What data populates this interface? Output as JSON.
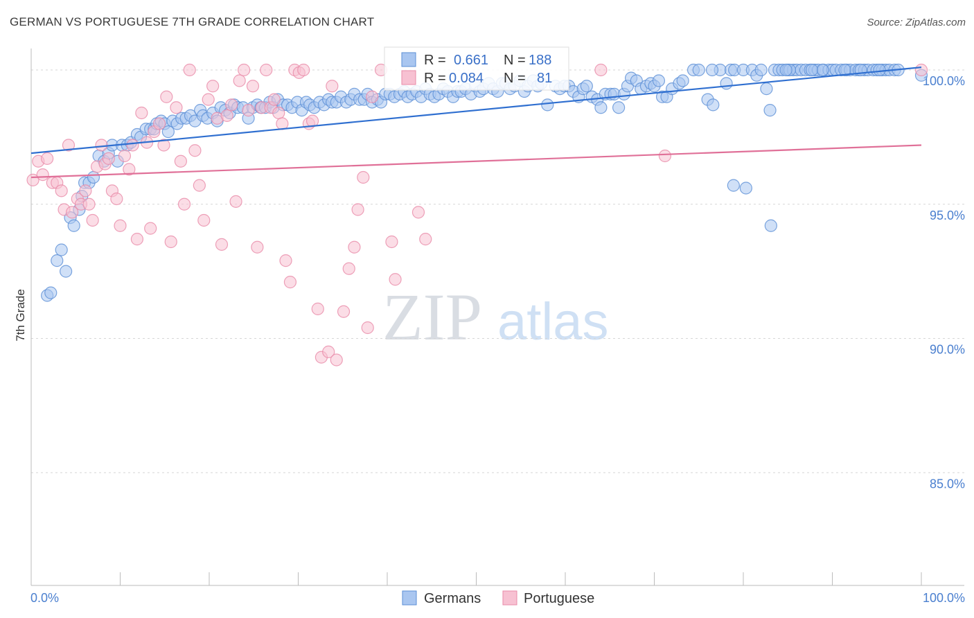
{
  "header": {
    "title": "GERMAN VS PORTUGUESE 7TH GRADE CORRELATION CHART",
    "source": "Source: ZipAtlas.com"
  },
  "watermark": {
    "zip": "ZIP",
    "atlas": "atlas"
  },
  "colors": {
    "german_fill": "#a9c6f0",
    "german_stroke": "#5b8fd6",
    "german_line": "#2f6fd0",
    "portuguese_fill": "#f7c1d2",
    "portuguese_stroke": "#e88aa8",
    "portuguese_line": "#e07098",
    "tick_label": "#4a7fcf"
  },
  "stats": {
    "germans": {
      "r_label": "R =",
      "r_value": "0.661",
      "n_label": "N =",
      "n_value": "188"
    },
    "portuguese": {
      "r_label": "R =",
      "r_value": "0.084",
      "n_label": "N =",
      "n_value": "81"
    }
  },
  "chart_data": {
    "type": "scatter",
    "title": "GERMAN VS PORTUGUESE 7TH GRADE CORRELATION CHART",
    "xlabel": "",
    "ylabel": "7th Grade",
    "xlim": [
      0,
      100
    ],
    "ylim": [
      80.8,
      100.8
    ],
    "x_tick_labels": [
      "0.0%",
      "100.0%"
    ],
    "y_ticks": [
      85,
      90,
      95,
      100
    ],
    "y_tick_labels": [
      "85.0%",
      "90.0%",
      "95.0%",
      "100.0%"
    ],
    "grid": true,
    "legend_position": "bottom-center",
    "series": [
      {
        "name": "Germans",
        "trend": {
          "x": [
            0,
            100
          ],
          "y": [
            96.9,
            100.1
          ]
        },
        "points": [
          [
            1.8,
            91.6
          ],
          [
            2.2,
            91.7
          ],
          [
            2.9,
            92.9
          ],
          [
            3.4,
            93.3
          ],
          [
            3.9,
            92.5
          ],
          [
            4.4,
            94.5
          ],
          [
            4.8,
            94.2
          ],
          [
            5.4,
            94.8
          ],
          [
            5.7,
            95.3
          ],
          [
            6.0,
            95.8
          ],
          [
            6.5,
            95.8
          ],
          [
            7.0,
            96.0
          ],
          [
            7.6,
            96.8
          ],
          [
            8.2,
            96.6
          ],
          [
            8.7,
            96.9
          ],
          [
            9.1,
            97.2
          ],
          [
            9.7,
            96.6
          ],
          [
            10.2,
            97.2
          ],
          [
            10.8,
            97.2
          ],
          [
            11.2,
            97.3
          ],
          [
            11.9,
            97.6
          ],
          [
            12.3,
            97.5
          ],
          [
            12.9,
            97.8
          ],
          [
            13.4,
            97.8
          ],
          [
            13.8,
            97.8
          ],
          [
            14.1,
            98.0
          ],
          [
            14.6,
            98.1
          ],
          [
            15.0,
            98.0
          ],
          [
            15.4,
            97.7
          ],
          [
            15.9,
            98.1
          ],
          [
            16.4,
            98.0
          ],
          [
            16.9,
            98.2
          ],
          [
            17.4,
            98.2
          ],
          [
            17.9,
            98.3
          ],
          [
            18.4,
            98.1
          ],
          [
            19.0,
            98.5
          ],
          [
            19.3,
            98.3
          ],
          [
            19.8,
            98.2
          ],
          [
            20.4,
            98.4
          ],
          [
            20.9,
            98.1
          ],
          [
            21.3,
            98.6
          ],
          [
            21.8,
            98.5
          ],
          [
            22.3,
            98.4
          ],
          [
            22.8,
            98.7
          ],
          [
            23.2,
            98.6
          ],
          [
            23.8,
            98.6
          ],
          [
            24.4,
            98.2
          ],
          [
            24.9,
            98.6
          ],
          [
            25.4,
            98.7
          ],
          [
            25.8,
            98.6
          ],
          [
            26.3,
            98.6
          ],
          [
            26.8,
            98.8
          ],
          [
            27.2,
            98.6
          ],
          [
            27.7,
            98.9
          ],
          [
            28.3,
            98.7
          ],
          [
            28.8,
            98.7
          ],
          [
            29.3,
            98.6
          ],
          [
            29.9,
            98.8
          ],
          [
            30.4,
            98.5
          ],
          [
            30.9,
            98.8
          ],
          [
            31.3,
            98.7
          ],
          [
            31.8,
            98.6
          ],
          [
            32.4,
            98.8
          ],
          [
            32.9,
            98.7
          ],
          [
            33.4,
            98.9
          ],
          [
            33.8,
            98.8
          ],
          [
            34.3,
            98.8
          ],
          [
            34.8,
            99.0
          ],
          [
            35.4,
            98.8
          ],
          [
            35.9,
            98.9
          ],
          [
            36.3,
            99.1
          ],
          [
            36.9,
            98.9
          ],
          [
            37.4,
            98.9
          ],
          [
            37.8,
            99.1
          ],
          [
            38.3,
            98.8
          ],
          [
            38.9,
            98.9
          ],
          [
            39.3,
            98.8
          ],
          [
            39.8,
            99.1
          ],
          [
            40.3,
            99.1
          ],
          [
            40.8,
            99.0
          ],
          [
            41.4,
            99.1
          ],
          [
            41.9,
            99.2
          ],
          [
            42.3,
            99.0
          ],
          [
            42.8,
            99.1
          ],
          [
            43.3,
            99.2
          ],
          [
            43.8,
            99.0
          ],
          [
            44.3,
            99.3
          ],
          [
            44.8,
            99.1
          ],
          [
            45.3,
            99.0
          ],
          [
            45.8,
            99.1
          ],
          [
            46.3,
            99.3
          ],
          [
            46.8,
            99.2
          ],
          [
            47.4,
            99.0
          ],
          [
            47.9,
            99.2
          ],
          [
            48.3,
            99.2
          ],
          [
            48.8,
            99.3
          ],
          [
            49.4,
            99.1
          ],
          [
            49.9,
            99.4
          ],
          [
            50.4,
            99.2
          ],
          [
            50.8,
            99.3
          ],
          [
            51.4,
            99.5
          ],
          [
            51.9,
            99.3
          ],
          [
            52.4,
            99.2
          ],
          [
            52.9,
            99.5
          ],
          [
            53.3,
            99.5
          ],
          [
            53.8,
            99.3
          ],
          [
            54.3,
            99.4
          ],
          [
            54.9,
            99.6
          ],
          [
            55.4,
            99.2
          ],
          [
            55.8,
            99.4
          ],
          [
            56.4,
            99.6
          ],
          [
            56.9,
            99.4
          ],
          [
            57.3,
            99.5
          ],
          [
            58.0,
            98.7
          ],
          [
            58.9,
            99.4
          ],
          [
            59.4,
            99.3
          ],
          [
            59.9,
            99.4
          ],
          [
            60.4,
            99.4
          ],
          [
            60.9,
            99.2
          ],
          [
            61.5,
            99.0
          ],
          [
            62.0,
            99.3
          ],
          [
            62.4,
            99.4
          ],
          [
            63.0,
            99.0
          ],
          [
            63.6,
            98.9
          ],
          [
            64.0,
            98.6
          ],
          [
            64.5,
            99.1
          ],
          [
            65.1,
            99.1
          ],
          [
            65.5,
            99.1
          ],
          [
            66.0,
            98.6
          ],
          [
            66.6,
            99.1
          ],
          [
            67.0,
            99.4
          ],
          [
            67.4,
            99.7
          ],
          [
            68.0,
            99.6
          ],
          [
            68.5,
            99.3
          ],
          [
            69.1,
            99.4
          ],
          [
            69.6,
            99.5
          ],
          [
            70.0,
            99.4
          ],
          [
            70.5,
            99.6
          ],
          [
            70.9,
            99.0
          ],
          [
            71.4,
            99.0
          ],
          [
            72.0,
            99.3
          ],
          [
            72.8,
            99.5
          ],
          [
            73.2,
            99.6
          ],
          [
            74.4,
            100.0
          ],
          [
            75.0,
            100.0
          ],
          [
            76.0,
            98.9
          ],
          [
            76.6,
            98.7
          ],
          [
            77.4,
            100.0
          ],
          [
            78.1,
            99.5
          ],
          [
            78.6,
            100.0
          ],
          [
            79.0,
            100.0
          ],
          [
            80.0,
            100.0
          ],
          [
            81.0,
            100.0
          ],
          [
            81.5,
            99.8
          ],
          [
            82.0,
            100.0
          ],
          [
            82.6,
            99.3
          ],
          [
            83.0,
            98.5
          ],
          [
            83.5,
            100.0
          ],
          [
            84.0,
            100.0
          ],
          [
            84.4,
            100.0
          ],
          [
            85.0,
            100.0
          ],
          [
            85.6,
            100.0
          ],
          [
            86.0,
            100.0
          ],
          [
            86.5,
            100.0
          ],
          [
            87.0,
            100.0
          ],
          [
            87.5,
            100.0
          ],
          [
            88.0,
            100.0
          ],
          [
            88.4,
            100.0
          ],
          [
            89.0,
            100.0
          ],
          [
            89.6,
            100.0
          ],
          [
            90.0,
            100.0
          ],
          [
            90.4,
            100.0
          ],
          [
            91.0,
            100.0
          ],
          [
            91.6,
            100.0
          ],
          [
            92.0,
            100.0
          ],
          [
            92.6,
            100.0
          ],
          [
            93.0,
            100.0
          ],
          [
            93.6,
            100.0
          ],
          [
            94.0,
            100.0
          ],
          [
            94.6,
            100.0
          ],
          [
            95.0,
            100.0
          ],
          [
            95.6,
            100.0
          ],
          [
            96.0,
            100.0
          ],
          [
            96.4,
            100.0
          ],
          [
            97.0,
            100.0
          ],
          [
            97.4,
            100.0
          ],
          [
            80.3,
            95.6
          ],
          [
            78.9,
            95.7
          ],
          [
            83.1,
            94.2
          ],
          [
            100.0,
            99.8
          ],
          [
            85.2,
            100.0
          ],
          [
            88.9,
            100.0
          ],
          [
            93.2,
            100.0
          ],
          [
            76.5,
            100.0
          ],
          [
            84.8,
            100.0
          ],
          [
            91.4,
            100.0
          ],
          [
            87.7,
            100.0
          ],
          [
            95.3,
            100.0
          ]
        ]
      },
      {
        "name": "Portuguese",
        "trend": {
          "x": [
            0,
            100
          ],
          "y": [
            96.0,
            97.2
          ]
        },
        "points": [
          [
            0.2,
            95.9
          ],
          [
            0.8,
            96.6
          ],
          [
            1.3,
            96.1
          ],
          [
            1.8,
            96.7
          ],
          [
            2.4,
            95.8
          ],
          [
            2.9,
            95.8
          ],
          [
            3.4,
            95.5
          ],
          [
            3.7,
            94.8
          ],
          [
            4.2,
            97.2
          ],
          [
            4.6,
            94.7
          ],
          [
            5.2,
            95.2
          ],
          [
            5.6,
            95.0
          ],
          [
            6.1,
            95.5
          ],
          [
            6.5,
            95.0
          ],
          [
            6.9,
            94.4
          ],
          [
            7.4,
            96.4
          ],
          [
            7.9,
            97.2
          ],
          [
            8.3,
            96.5
          ],
          [
            8.7,
            96.7
          ],
          [
            9.1,
            95.5
          ],
          [
            9.6,
            95.2
          ],
          [
            10.0,
            94.2
          ],
          [
            10.5,
            96.8
          ],
          [
            11.0,
            96.3
          ],
          [
            11.4,
            97.2
          ],
          [
            11.9,
            93.7
          ],
          [
            12.4,
            98.4
          ],
          [
            13.0,
            97.3
          ],
          [
            13.4,
            94.1
          ],
          [
            13.8,
            97.7
          ],
          [
            14.4,
            98.0
          ],
          [
            14.9,
            97.2
          ],
          [
            15.2,
            99.0
          ],
          [
            15.7,
            93.6
          ],
          [
            16.3,
            98.6
          ],
          [
            16.8,
            96.6
          ],
          [
            17.2,
            95.0
          ],
          [
            17.8,
            100.0
          ],
          [
            18.4,
            97.0
          ],
          [
            18.9,
            95.7
          ],
          [
            19.4,
            94.4
          ],
          [
            19.9,
            98.9
          ],
          [
            20.4,
            99.4
          ],
          [
            20.9,
            98.2
          ],
          [
            21.4,
            93.5
          ],
          [
            22.0,
            98.3
          ],
          [
            22.5,
            98.7
          ],
          [
            23.0,
            95.1
          ],
          [
            23.4,
            99.6
          ],
          [
            23.9,
            100.0
          ],
          [
            24.4,
            98.5
          ],
          [
            24.9,
            99.4
          ],
          [
            25.4,
            93.4
          ],
          [
            25.9,
            98.6
          ],
          [
            26.4,
            100.0
          ],
          [
            26.9,
            98.6
          ],
          [
            27.3,
            98.9
          ],
          [
            27.8,
            98.4
          ],
          [
            28.2,
            98.0
          ],
          [
            28.6,
            92.9
          ],
          [
            29.1,
            92.1
          ],
          [
            29.6,
            100.0
          ],
          [
            30.1,
            99.9
          ],
          [
            30.6,
            100.0
          ],
          [
            31.2,
            98.0
          ],
          [
            31.6,
            98.1
          ],
          [
            32.2,
            91.1
          ],
          [
            32.6,
            89.3
          ],
          [
            33.4,
            89.5
          ],
          [
            33.8,
            99.4
          ],
          [
            34.3,
            89.2
          ],
          [
            35.1,
            91.0
          ],
          [
            35.7,
            92.6
          ],
          [
            36.3,
            93.4
          ],
          [
            36.7,
            94.8
          ],
          [
            37.3,
            96.0
          ],
          [
            37.8,
            90.4
          ],
          [
            38.3,
            99.0
          ],
          [
            39.3,
            100.0
          ],
          [
            40.5,
            93.6
          ],
          [
            40.9,
            92.2
          ],
          [
            43.5,
            94.7
          ],
          [
            44.3,
            93.7
          ],
          [
            71.2,
            96.8
          ],
          [
            64.0,
            100.0
          ],
          [
            100.0,
            100.0
          ]
        ]
      }
    ]
  }
}
